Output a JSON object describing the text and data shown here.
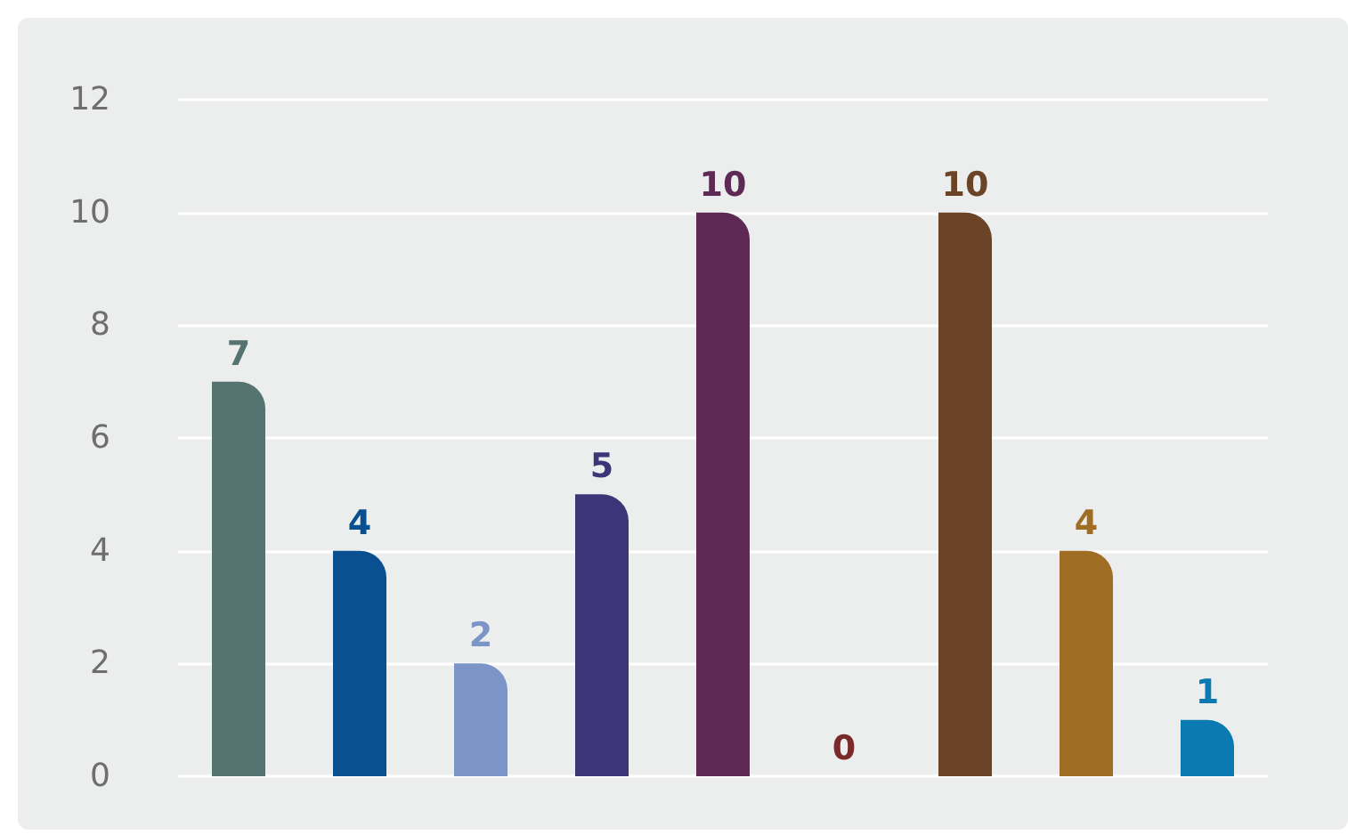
{
  "chart_data": {
    "type": "bar",
    "categories": [
      null,
      null,
      null,
      null,
      null,
      null,
      null,
      null,
      null
    ],
    "values": [
      7,
      4,
      2,
      5,
      10,
      0,
      10,
      4,
      1
    ],
    "colors": [
      "#557370",
      "#0a4f8f",
      "#7b95c8",
      "#3d3577",
      "#5e2a55",
      "#7a2a2a",
      "#6b4428",
      "#a06d25",
      "#0a7ab0"
    ],
    "ylim": [
      0,
      12
    ],
    "yticks": [
      0,
      2,
      4,
      6,
      8,
      10,
      12
    ],
    "grid": "y",
    "data_labels": true
  }
}
